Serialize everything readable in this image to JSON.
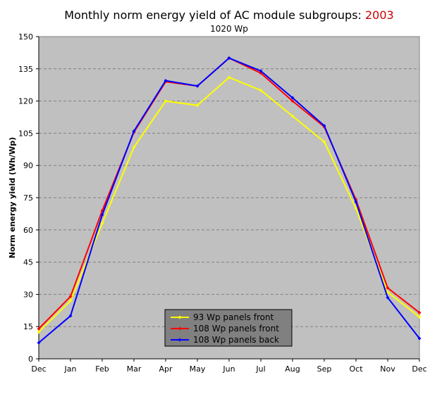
{
  "chart_data": {
    "type": "line",
    "title": "Monthly norm energy yield of AC module subgroups: ",
    "title_year": "2003",
    "subtitle": "1020 Wp",
    "xlabel": "",
    "ylabel": "Norm energy yield (Wh/Wp)",
    "categories": [
      "Dec",
      "Jan",
      "Feb",
      "Mar",
      "Apr",
      "May",
      "Jun",
      "Jul",
      "Aug",
      "Sep",
      "Oct",
      "Nov",
      "Dec"
    ],
    "ylim": [
      0,
      150
    ],
    "yticks": [
      0,
      15,
      30,
      45,
      60,
      75,
      90,
      105,
      120,
      135,
      150
    ],
    "grid": true,
    "legend_position": "bottom-center",
    "series": [
      {
        "name": "93 Wp panels front",
        "color": "#ffff00",
        "values": [
          12.5,
          27,
          63,
          98.5,
          120,
          118,
          131,
          125,
          113,
          101,
          70,
          31,
          19.5
        ]
      },
      {
        "name": "108 Wp panels front",
        "color": "#ff0000",
        "values": [
          14,
          29,
          69,
          105.5,
          129,
          127,
          140,
          133,
          120,
          108,
          74,
          33,
          21.5
        ]
      },
      {
        "name": "108 Wp panels back",
        "color": "#0000ff",
        "values": [
          7.5,
          20,
          67,
          106,
          129.5,
          127,
          140,
          134,
          121.5,
          108.5,
          73,
          28.5,
          9.5
        ]
      }
    ],
    "colors": {
      "plot_background": "#c0c0c0",
      "legend_background": "#808080",
      "title_year_color": "#cc0000",
      "grid_color": "#808080"
    }
  }
}
